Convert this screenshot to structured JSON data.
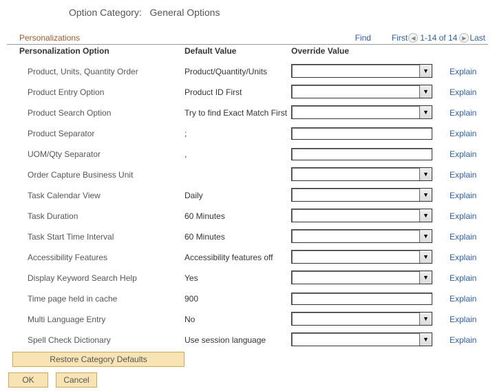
{
  "title": {
    "label": "Option Category:",
    "value": "General Options"
  },
  "section": {
    "heading": "Personalizations",
    "find": "Find",
    "first": "First",
    "range": "1-14 of 14",
    "last": "Last"
  },
  "columns": {
    "option": "Personalization Option",
    "default": "Default Value",
    "override": "Override Value",
    "explain": "Explain"
  },
  "rows": [
    {
      "option": "Product, Units, Quantity Order",
      "default": "Product/Quantity/Units",
      "control": "select"
    },
    {
      "option": "Product Entry Option",
      "default": "Product ID First",
      "control": "select"
    },
    {
      "option": "Product Search Option",
      "default": "Try to find Exact Match First",
      "control": "select"
    },
    {
      "option": "Product Separator",
      "default": ";",
      "control": "text"
    },
    {
      "option": "UOM/Qty Separator",
      "default": ",",
      "control": "text"
    },
    {
      "option": "Order Capture Business Unit",
      "default": "",
      "control": "select"
    },
    {
      "option": "Task Calendar View",
      "default": "Daily",
      "control": "select"
    },
    {
      "option": "Task Duration",
      "default": "60 Minutes",
      "control": "select"
    },
    {
      "option": "Task Start Time Interval",
      "default": "60 Minutes",
      "control": "select"
    },
    {
      "option": "Accessibility Features",
      "default": "Accessibility features off",
      "control": "select"
    },
    {
      "option": "Display Keyword Search Help",
      "default": "Yes",
      "control": "select"
    },
    {
      "option": "Time page held in cache",
      "default": "900",
      "control": "text"
    },
    {
      "option": "Multi Language Entry",
      "default": "No",
      "control": "select"
    },
    {
      "option": "Spell Check Dictionary",
      "default": "Use session language",
      "control": "select"
    }
  ],
  "buttons": {
    "restore": "Restore Category Defaults",
    "ok": "OK",
    "cancel": "Cancel"
  }
}
